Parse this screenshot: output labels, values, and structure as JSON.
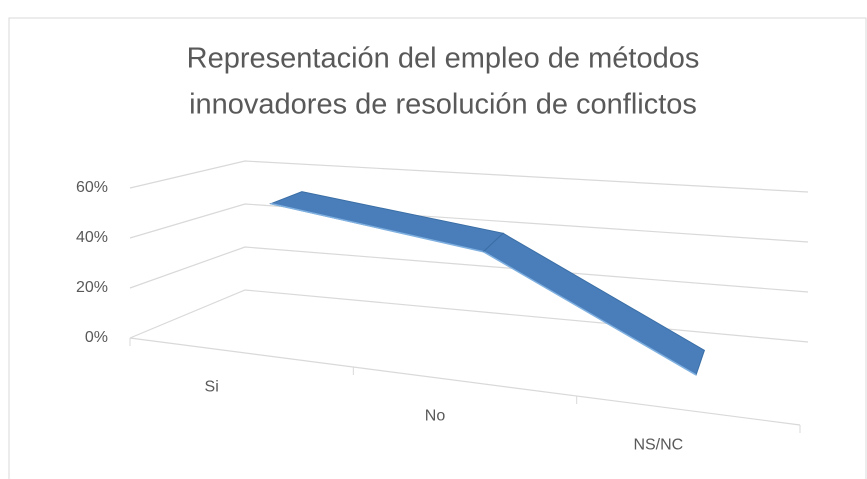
{
  "chart_data": {
    "type": "line3d",
    "title": [
      "Representación del empleo de métodos",
      "innovadores de resolución de conflictos"
    ],
    "categories": [
      "Si",
      "No",
      "NS/NC"
    ],
    "values": [
      55,
      45,
      5
    ],
    "color": "#4a7ebb",
    "ylim": [
      0,
      60
    ],
    "yticks": [
      {
        "value": 0,
        "label": "0%"
      },
      {
        "value": 20,
        "label": "20%"
      },
      {
        "value": 40,
        "label": "40%"
      },
      {
        "value": 60,
        "label": "60%"
      }
    ],
    "grid": true
  }
}
